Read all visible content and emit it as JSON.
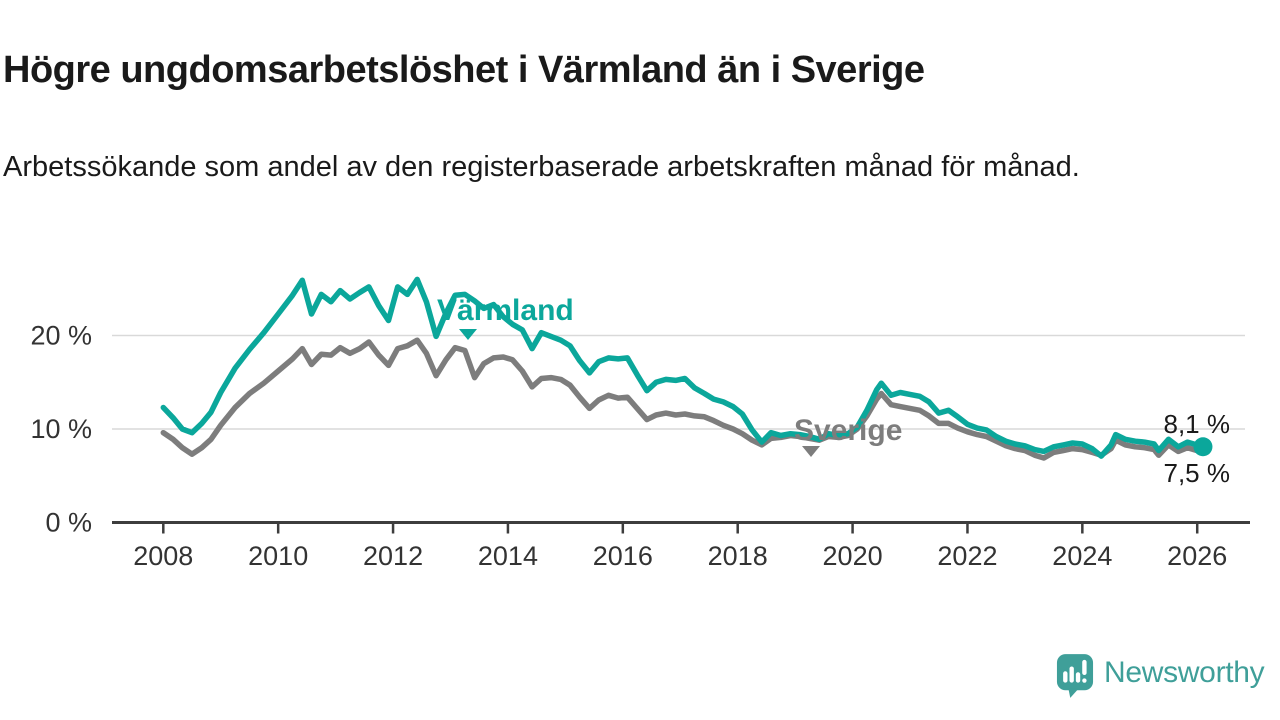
{
  "header": {
    "title": "Högre ungdomsarbetslöshet i Värmland än i Sverige",
    "subtitle": "Arbetssökande som andel av den registerbaserade arbetskraften månad för månad."
  },
  "chart_data": {
    "type": "line",
    "title": "Högre ungdomsarbetslöshet i Värmland än i Sverige",
    "subtitle": "Arbetssökande som andel av den registerbaserade arbetskraften månad för månad.",
    "unit": "%",
    "x_range_years": [
      2008,
      2026.1
    ],
    "ylim": [
      0,
      27
    ],
    "yticks": [
      0,
      10,
      20
    ],
    "ytick_labels": [
      "0 %",
      "10 %",
      "20 %"
    ],
    "grid_values": [
      10,
      20
    ],
    "xticks": [
      2008,
      2010,
      2012,
      2014,
      2016,
      2018,
      2020,
      2022,
      2024,
      2026
    ],
    "legend_position": "inline-labels",
    "series": [
      {
        "name": "Värmland",
        "color": "#0ba79b",
        "end_label": "8,1 %",
        "end_value": 8.1,
        "points": [
          [
            2008,
            12.3
          ],
          [
            2008.17,
            11.2
          ],
          [
            2008.33,
            10
          ],
          [
            2008.5,
            9.6
          ],
          [
            2008.67,
            10.6
          ],
          [
            2008.83,
            11.8
          ],
          [
            2009,
            13.9
          ],
          [
            2009.25,
            16.5
          ],
          [
            2009.5,
            18.5
          ],
          [
            2009.75,
            20.3
          ],
          [
            2010,
            22.3
          ],
          [
            2010.25,
            24.3
          ],
          [
            2010.42,
            25.9
          ],
          [
            2010.58,
            22.3
          ],
          [
            2010.75,
            24.4
          ],
          [
            2010.92,
            23.6
          ],
          [
            2011.08,
            24.8
          ],
          [
            2011.25,
            23.9
          ],
          [
            2011.42,
            24.6
          ],
          [
            2011.58,
            25.2
          ],
          [
            2011.75,
            23.2
          ],
          [
            2011.92,
            21.6
          ],
          [
            2012.08,
            25.2
          ],
          [
            2012.25,
            24.4
          ],
          [
            2012.42,
            26
          ],
          [
            2012.58,
            23.6
          ],
          [
            2012.75,
            19.9
          ],
          [
            2012.92,
            22.4
          ],
          [
            2013.08,
            24.3
          ],
          [
            2013.25,
            24.4
          ],
          [
            2013.42,
            23.7
          ],
          [
            2013.58,
            22.9
          ],
          [
            2013.75,
            23.3
          ],
          [
            2013.92,
            22
          ],
          [
            2014.08,
            21.2
          ],
          [
            2014.25,
            20.6
          ],
          [
            2014.42,
            18.6
          ],
          [
            2014.58,
            20.3
          ],
          [
            2014.75,
            19.9
          ],
          [
            2014.92,
            19.5
          ],
          [
            2015.08,
            18.9
          ],
          [
            2015.25,
            17.3
          ],
          [
            2015.42,
            16
          ],
          [
            2015.58,
            17.2
          ],
          [
            2015.75,
            17.6
          ],
          [
            2015.92,
            17.5
          ],
          [
            2016.08,
            17.6
          ],
          [
            2016.25,
            15.8
          ],
          [
            2016.42,
            14.1
          ],
          [
            2016.58,
            15
          ],
          [
            2016.75,
            15.3
          ],
          [
            2016.92,
            15.2
          ],
          [
            2017.08,
            15.4
          ],
          [
            2017.25,
            14.4
          ],
          [
            2017.42,
            13.8
          ],
          [
            2017.58,
            13.2
          ],
          [
            2017.75,
            12.9
          ],
          [
            2017.92,
            12.4
          ],
          [
            2018.08,
            11.6
          ],
          [
            2018.25,
            9.9
          ],
          [
            2018.42,
            8.6
          ],
          [
            2018.58,
            9.6
          ],
          [
            2018.75,
            9.3
          ],
          [
            2018.92,
            9.5
          ],
          [
            2019.08,
            9.4
          ],
          [
            2019.25,
            9.2
          ],
          [
            2019.42,
            8.9
          ],
          [
            2019.58,
            9.5
          ],
          [
            2019.75,
            9.3
          ],
          [
            2019.92,
            9.5
          ],
          [
            2020.08,
            10.2
          ],
          [
            2020.25,
            12
          ],
          [
            2020.42,
            14.2
          ],
          [
            2020.5,
            14.9
          ],
          [
            2020.67,
            13.6
          ],
          [
            2020.83,
            13.9
          ],
          [
            2021,
            13.7
          ],
          [
            2021.17,
            13.5
          ],
          [
            2021.33,
            12.9
          ],
          [
            2021.5,
            11.7
          ],
          [
            2021.67,
            12
          ],
          [
            2021.83,
            11.3
          ],
          [
            2022,
            10.5
          ],
          [
            2022.17,
            10.1
          ],
          [
            2022.33,
            9.9
          ],
          [
            2022.5,
            9.2
          ],
          [
            2022.67,
            8.7
          ],
          [
            2022.83,
            8.4
          ],
          [
            2023,
            8.2
          ],
          [
            2023.17,
            7.8
          ],
          [
            2023.33,
            7.6
          ],
          [
            2023.5,
            8.1
          ],
          [
            2023.67,
            8.3
          ],
          [
            2023.83,
            8.5
          ],
          [
            2024,
            8.4
          ],
          [
            2024.17,
            7.9
          ],
          [
            2024.33,
            7.1
          ],
          [
            2024.5,
            8.3
          ],
          [
            2024.58,
            9.4
          ],
          [
            2024.75,
            8.9
          ],
          [
            2024.92,
            8.7
          ],
          [
            2025.08,
            8.6
          ],
          [
            2025.25,
            8.4
          ],
          [
            2025.33,
            7.7
          ],
          [
            2025.5,
            8.9
          ],
          [
            2025.67,
            8.1
          ],
          [
            2025.83,
            8.6
          ],
          [
            2026.1,
            8.1
          ]
        ]
      },
      {
        "name": "Sverige",
        "color": "#7d7d7d",
        "end_label": "7,5 %",
        "end_value": 7.5,
        "points": [
          [
            2008,
            9.6
          ],
          [
            2008.17,
            8.9
          ],
          [
            2008.33,
            8
          ],
          [
            2008.5,
            7.3
          ],
          [
            2008.67,
            8
          ],
          [
            2008.83,
            8.9
          ],
          [
            2009,
            10.4
          ],
          [
            2009.25,
            12.3
          ],
          [
            2009.5,
            13.8
          ],
          [
            2009.75,
            14.9
          ],
          [
            2010,
            16.2
          ],
          [
            2010.25,
            17.5
          ],
          [
            2010.42,
            18.6
          ],
          [
            2010.58,
            16.9
          ],
          [
            2010.75,
            18
          ],
          [
            2010.92,
            17.9
          ],
          [
            2011.08,
            18.7
          ],
          [
            2011.25,
            18.1
          ],
          [
            2011.42,
            18.6
          ],
          [
            2011.58,
            19.3
          ],
          [
            2011.75,
            17.9
          ],
          [
            2011.92,
            16.8
          ],
          [
            2012.08,
            18.6
          ],
          [
            2012.25,
            18.9
          ],
          [
            2012.42,
            19.5
          ],
          [
            2012.58,
            18.1
          ],
          [
            2012.75,
            15.7
          ],
          [
            2012.92,
            17.4
          ],
          [
            2013.08,
            18.7
          ],
          [
            2013.25,
            18.4
          ],
          [
            2013.42,
            15.5
          ],
          [
            2013.58,
            17
          ],
          [
            2013.75,
            17.6
          ],
          [
            2013.92,
            17.7
          ],
          [
            2014.08,
            17.4
          ],
          [
            2014.25,
            16.2
          ],
          [
            2014.42,
            14.5
          ],
          [
            2014.58,
            15.4
          ],
          [
            2014.75,
            15.5
          ],
          [
            2014.92,
            15.3
          ],
          [
            2015.08,
            14.7
          ],
          [
            2015.25,
            13.4
          ],
          [
            2015.42,
            12.2
          ],
          [
            2015.58,
            13.1
          ],
          [
            2015.75,
            13.6
          ],
          [
            2015.92,
            13.3
          ],
          [
            2016.08,
            13.4
          ],
          [
            2016.25,
            12.2
          ],
          [
            2016.42,
            11
          ],
          [
            2016.58,
            11.5
          ],
          [
            2016.75,
            11.7
          ],
          [
            2016.92,
            11.5
          ],
          [
            2017.08,
            11.6
          ],
          [
            2017.25,
            11.4
          ],
          [
            2017.42,
            11.3
          ],
          [
            2017.58,
            10.9
          ],
          [
            2017.75,
            10.4
          ],
          [
            2017.92,
            10
          ],
          [
            2018.08,
            9.5
          ],
          [
            2018.25,
            8.8
          ],
          [
            2018.42,
            8.3
          ],
          [
            2018.58,
            9
          ],
          [
            2018.75,
            9.1
          ],
          [
            2018.92,
            9.3
          ],
          [
            2019.08,
            9.2
          ],
          [
            2019.25,
            9
          ],
          [
            2019.42,
            8.8
          ],
          [
            2019.58,
            9.2
          ],
          [
            2019.75,
            9.1
          ],
          [
            2019.92,
            9.3
          ],
          [
            2020.08,
            10
          ],
          [
            2020.25,
            11.4
          ],
          [
            2020.42,
            13.2
          ],
          [
            2020.5,
            13.8
          ],
          [
            2020.67,
            12.6
          ],
          [
            2020.83,
            12.4
          ],
          [
            2021,
            12.2
          ],
          [
            2021.17,
            12
          ],
          [
            2021.33,
            11.4
          ],
          [
            2021.5,
            10.6
          ],
          [
            2021.67,
            10.6
          ],
          [
            2021.83,
            10.1
          ],
          [
            2022,
            9.7
          ],
          [
            2022.17,
            9.4
          ],
          [
            2022.33,
            9.2
          ],
          [
            2022.5,
            8.7
          ],
          [
            2022.67,
            8.2
          ],
          [
            2022.83,
            7.9
          ],
          [
            2023,
            7.7
          ],
          [
            2023.17,
            7.2
          ],
          [
            2023.33,
            6.9
          ],
          [
            2023.5,
            7.5
          ],
          [
            2023.67,
            7.7
          ],
          [
            2023.83,
            7.9
          ],
          [
            2024,
            7.8
          ],
          [
            2024.17,
            7.5
          ],
          [
            2024.33,
            7.2
          ],
          [
            2024.5,
            7.9
          ],
          [
            2024.58,
            8.8
          ],
          [
            2024.75,
            8.3
          ],
          [
            2024.92,
            8.1
          ],
          [
            2025.08,
            8
          ],
          [
            2025.25,
            7.8
          ],
          [
            2025.33,
            7.2
          ],
          [
            2025.5,
            8.3
          ],
          [
            2025.67,
            7.6
          ],
          [
            2025.83,
            8
          ],
          [
            2026.1,
            7.5
          ]
        ]
      }
    ]
  },
  "colors": {
    "varmland_teal": "#0ba79b",
    "sverige_gray": "#7d7d7d",
    "axis": "#3d3d3d",
    "gridline": "#d9d9d9",
    "text": "#1a1a1a",
    "logo_teal": "#3f9f99"
  },
  "footer": {
    "brand": "Newsworthy"
  }
}
